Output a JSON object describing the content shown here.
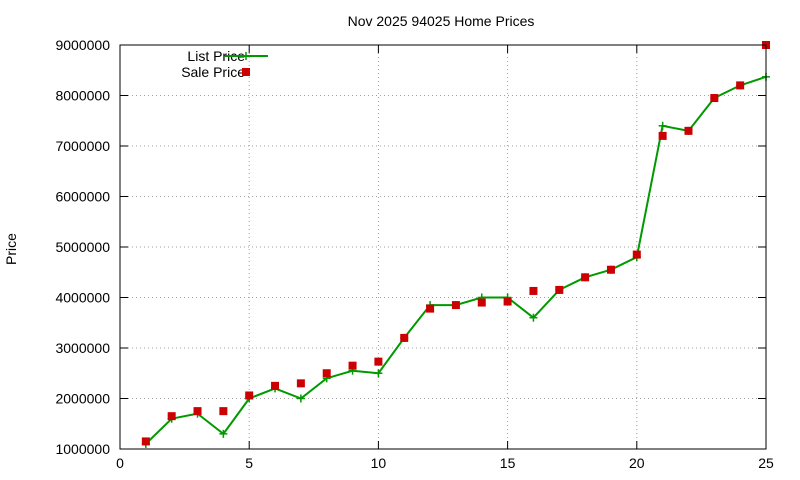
{
  "chart_data": {
    "type": "line",
    "title": "Nov 2025 94025 Home Prices",
    "xlabel": "",
    "ylabel": "Price",
    "xlim": [
      0,
      25
    ],
    "ylim": [
      1000000,
      9000000
    ],
    "x_ticks": [
      0,
      5,
      10,
      15,
      20,
      25
    ],
    "x_tick_labels": [
      "0",
      "5",
      "10",
      "15",
      "20",
      "25"
    ],
    "y_ticks": [
      1000000,
      2000000,
      3000000,
      4000000,
      5000000,
      6000000,
      7000000,
      8000000,
      9000000
    ],
    "y_tick_labels": [
      "1000000",
      "2000000",
      "3000000",
      "4000000",
      "5000000",
      "6000000",
      "7000000",
      "8000000",
      "9000000"
    ],
    "grid": true,
    "legend_placement": "top-left",
    "series": [
      {
        "name": "List Price",
        "style": "line-with-plus-markers",
        "color": "#009900",
        "x": [
          1,
          2,
          3,
          4,
          5,
          6,
          7,
          8,
          9,
          10,
          11,
          12,
          13,
          14,
          15,
          16,
          17,
          18,
          19,
          20,
          21,
          22,
          23,
          24,
          25
        ],
        "values": [
          1100000,
          1600000,
          1700000,
          1300000,
          2000000,
          2200000,
          2000000,
          2400000,
          2550000,
          2500000,
          3200000,
          3850000,
          3850000,
          4000000,
          4000000,
          3600000,
          4150000,
          4400000,
          4550000,
          4800000,
          7400000,
          7300000,
          7950000,
          8200000,
          8370000
        ]
      },
      {
        "name": "Sale Price",
        "style": "square-markers",
        "color": "#cc0000",
        "x": [
          1,
          2,
          3,
          4,
          5,
          6,
          7,
          8,
          9,
          10,
          11,
          12,
          13,
          14,
          15,
          16,
          17,
          18,
          19,
          20,
          21,
          22,
          23,
          24,
          25
        ],
        "values": [
          1150000,
          1650000,
          1750000,
          1750000,
          2060000,
          2250000,
          2300000,
          2500000,
          2650000,
          2730000,
          3200000,
          3780000,
          3850000,
          3900000,
          3920000,
          4130000,
          4150000,
          4400000,
          4550000,
          4850000,
          7200000,
          7300000,
          7950000,
          8200000,
          9000000
        ]
      }
    ]
  }
}
